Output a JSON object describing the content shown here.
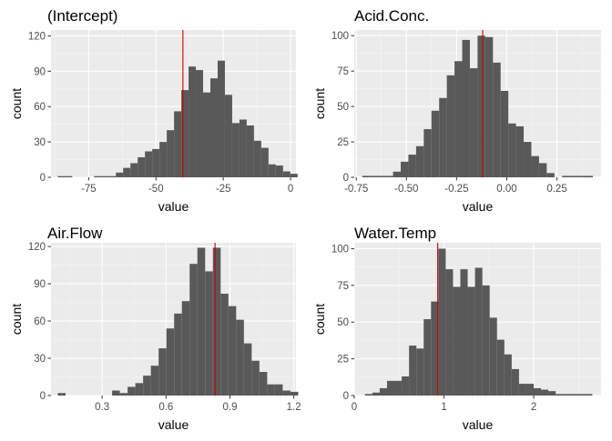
{
  "colors": {
    "panel_background": "#ebebeb",
    "grid_major": "#ffffff",
    "grid_minor": "#f5f5f5",
    "bar_fill": "#595959",
    "vline": "#cc0000",
    "tick": "#333333",
    "tick_label": "#4d4d4d"
  },
  "chart_data": [
    {
      "type": "bar",
      "title": "(Intercept)",
      "xlabel": "value",
      "ylabel": "count",
      "xlim": [
        -89,
        2
      ],
      "ylim": [
        0,
        125
      ],
      "xticks": [
        -75,
        -50,
        -25,
        0
      ],
      "xtick_labels": [
        "-75",
        "-50",
        "-25",
        "0"
      ],
      "yticks": [
        0,
        30,
        60,
        90,
        120
      ],
      "ytick_labels": [
        "0",
        "30",
        "60",
        "90",
        "120"
      ],
      "bin_start": -86.5,
      "bin_width": 2.7,
      "values": [
        1,
        1,
        0,
        0,
        0,
        1,
        1,
        1,
        4,
        8,
        12,
        17,
        22,
        24,
        30,
        40,
        56,
        74,
        94,
        91,
        72,
        84,
        99,
        70,
        46,
        49,
        44,
        31,
        25,
        11,
        10,
        5,
        3
      ],
      "vline": -40,
      "grid": true
    },
    {
      "type": "bar",
      "title": "Acid.Conc.",
      "xlabel": "value",
      "ylabel": "count",
      "xlim": [
        -0.76,
        0.47
      ],
      "ylim": [
        0,
        104
      ],
      "xticks": [
        -0.75,
        -0.5,
        -0.25,
        0,
        0.25
      ],
      "xtick_labels": [
        "-0.75",
        "-0.50",
        "-0.25",
        "0.00",
        "0.25"
      ],
      "yticks": [
        0,
        25,
        50,
        75,
        100
      ],
      "ytick_labels": [
        "0",
        "25",
        "50",
        "75",
        "100"
      ],
      "bin_start": -0.72,
      "bin_width": 0.0383,
      "values": [
        1,
        1,
        1,
        1,
        4,
        11,
        16,
        22,
        34,
        47,
        56,
        72,
        82,
        97,
        77,
        100,
        99,
        81,
        61,
        38,
        36,
        25,
        15,
        10,
        3,
        0,
        1,
        1,
        1,
        1
      ],
      "vline": -0.12,
      "grid": true
    },
    {
      "type": "bar",
      "title": "Air.Flow",
      "xlabel": "value",
      "ylabel": "count",
      "xlim": [
        0.06,
        1.21
      ],
      "ylim": [
        0,
        123
      ],
      "xticks": [
        0.3,
        0.6,
        0.9,
        1.2
      ],
      "xtick_labels": [
        "0.3",
        "0.6",
        "0.9",
        "1.2"
      ],
      "yticks": [
        0,
        30,
        60,
        90,
        120
      ],
      "ytick_labels": [
        "0",
        "30",
        "60",
        "90",
        "120"
      ],
      "bin_start": 0.092,
      "bin_width": 0.0364,
      "values": [
        2,
        0,
        0,
        0,
        0,
        0,
        0,
        4,
        2,
        7,
        10,
        16,
        24,
        38,
        54,
        66,
        76,
        106,
        119,
        100,
        119,
        82,
        72,
        61,
        42,
        28,
        19,
        9,
        9,
        4,
        3
      ],
      "vline": 0.83,
      "grid": true
    },
    {
      "type": "bar",
      "title": "Water.Temp",
      "xlabel": "value",
      "ylabel": "count",
      "xlim": [
        0,
        2.75
      ],
      "ylim": [
        0,
        104
      ],
      "xticks": [
        0,
        1,
        2
      ],
      "xtick_labels": [
        "0",
        "1",
        "2"
      ],
      "yticks": [
        0,
        25,
        50,
        75,
        100
      ],
      "ytick_labels": [
        "0",
        "25",
        "50",
        "75",
        "100"
      ],
      "bin_start": 0.12,
      "bin_width": 0.0817,
      "values": [
        1,
        2,
        5,
        10,
        10,
        13,
        34,
        32,
        52,
        64,
        100,
        86,
        74,
        86,
        74,
        87,
        75,
        53,
        38,
        28,
        18,
        8,
        8,
        5,
        4,
        3,
        1,
        1,
        1,
        1,
        1
      ],
      "vline": 0.93,
      "grid": true
    }
  ]
}
